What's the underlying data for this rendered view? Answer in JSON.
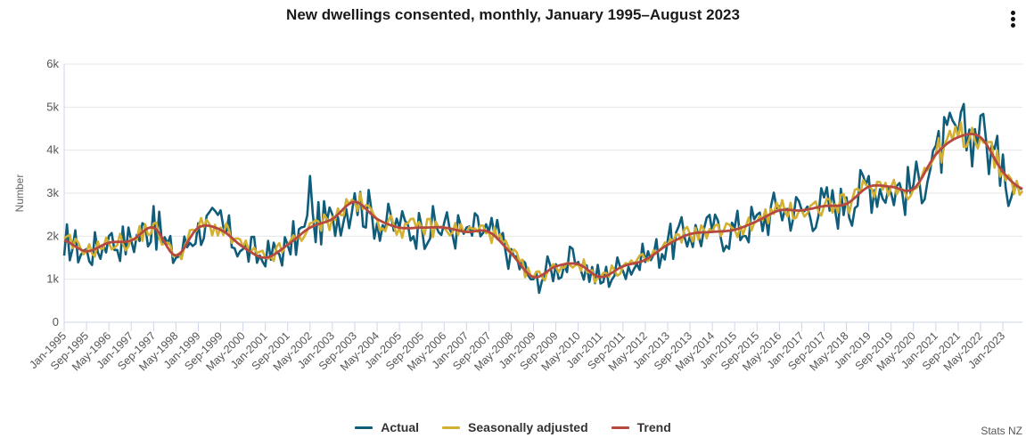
{
  "title": "New dwellings consented, monthly, January 1995–August 2023",
  "menu": {
    "icon": "kebab-menu-icon"
  },
  "credits": "Stats NZ",
  "chart_data": {
    "type": "line",
    "title": "New dwellings consented, monthly, January 1995–August 2023",
    "xlabel": "",
    "ylabel": "Number",
    "ylim": [
      0,
      6000
    ],
    "y_ticks": [
      0,
      1000,
      2000,
      3000,
      4000,
      5000,
      6000
    ],
    "y_tick_labels": [
      "0",
      "1k",
      "2k",
      "3k",
      "4k",
      "5k",
      "6k"
    ],
    "x_start": "Jan-1995",
    "x_end": "Aug-2023",
    "n_months": 344,
    "x_tick_every_months": 8,
    "x_tick_labels": [
      "Jan-1995",
      "Sep-1995",
      "May-1996",
      "Jan-1997",
      "Sep-1997",
      "May-1998",
      "Jan-1999",
      "Sep-1999",
      "May-2000",
      "Jan-2001",
      "Sep-2001",
      "May-2002",
      "Jan-2003",
      "Sep-2003",
      "May-2004",
      "Jan-2005",
      "Sep-2005",
      "May-2006",
      "Jan-2007",
      "Sep-2007",
      "May-2008",
      "Jan-2009",
      "Sep-2009",
      "May-2010",
      "Jan-2011",
      "Sep-2011",
      "May-2012",
      "Jan-2013",
      "Sep-2013",
      "May-2014",
      "Jan-2015",
      "Sep-2015",
      "May-2016",
      "Jan-2017",
      "Sep-2017",
      "May-2018",
      "Jan-2019",
      "Sep-2019",
      "May-2020",
      "Jan-2021",
      "Sep-2021",
      "May-2022",
      "Jan-2023"
    ],
    "grid": true,
    "legend_position": "bottom-center",
    "trend_anchor_month_index": [
      0,
      8,
      16,
      24,
      32,
      40,
      48,
      56,
      64,
      72,
      80,
      88,
      96,
      104,
      112,
      120,
      128,
      136,
      144,
      152,
      160,
      168,
      176,
      184,
      192,
      200,
      208,
      216,
      224,
      232,
      240,
      248,
      256,
      264,
      272,
      280,
      288,
      296,
      304,
      312,
      320,
      328,
      336,
      343
    ],
    "series": [
      {
        "name": "Actual",
        "color": "#0f5d7a",
        "anchor_values": [
          1550,
          1700,
          2000,
          1900,
          2700,
          1500,
          2300,
          2600,
          1700,
          1300,
          1800,
          3400,
          2500,
          3000,
          2300,
          2200,
          2200,
          2300,
          2200,
          2100,
          1700,
          1000,
          1350,
          1400,
          900,
          1200,
          1400,
          1900,
          2000,
          2100,
          2200,
          2500,
          2700,
          2600,
          2900,
          2900,
          3400,
          3000,
          3200,
          4100,
          4400,
          4800,
          3900,
          3100
        ]
      },
      {
        "name": "Seasonally adjusted",
        "color": "#d4b030",
        "anchor_values": [
          1950,
          1650,
          1850,
          1950,
          2300,
          1550,
          2200,
          2200,
          1750,
          1500,
          1800,
          2300,
          2450,
          2800,
          2400,
          2200,
          2200,
          2200,
          2100,
          2100,
          1600,
          1050,
          1300,
          1350,
          1050,
          1300,
          1450,
          1800,
          2050,
          2100,
          2150,
          2350,
          2600,
          2600,
          2700,
          2750,
          3150,
          3150,
          3100,
          3900,
          4300,
          4300,
          3500,
          3050
        ]
      },
      {
        "name": "Trend",
        "color": "#b5493f",
        "anchor_values": [
          1900,
          1650,
          1850,
          1900,
          2200,
          1550,
          2200,
          2150,
          1750,
          1500,
          1800,
          2200,
          2400,
          2800,
          2400,
          2200,
          2200,
          2200,
          2100,
          2100,
          1600,
          1050,
          1300,
          1350,
          1050,
          1300,
          1450,
          1800,
          2050,
          2100,
          2150,
          2350,
          2600,
          2600,
          2700,
          2750,
          3150,
          3150,
          3100,
          3900,
          4300,
          4300,
          3500,
          3100
        ]
      }
    ]
  },
  "legend": [
    {
      "label": "Actual",
      "color": "#0f5d7a"
    },
    {
      "label": "Seasonally adjusted",
      "color": "#d4b030"
    },
    {
      "label": "Trend",
      "color": "#b5493f"
    }
  ]
}
